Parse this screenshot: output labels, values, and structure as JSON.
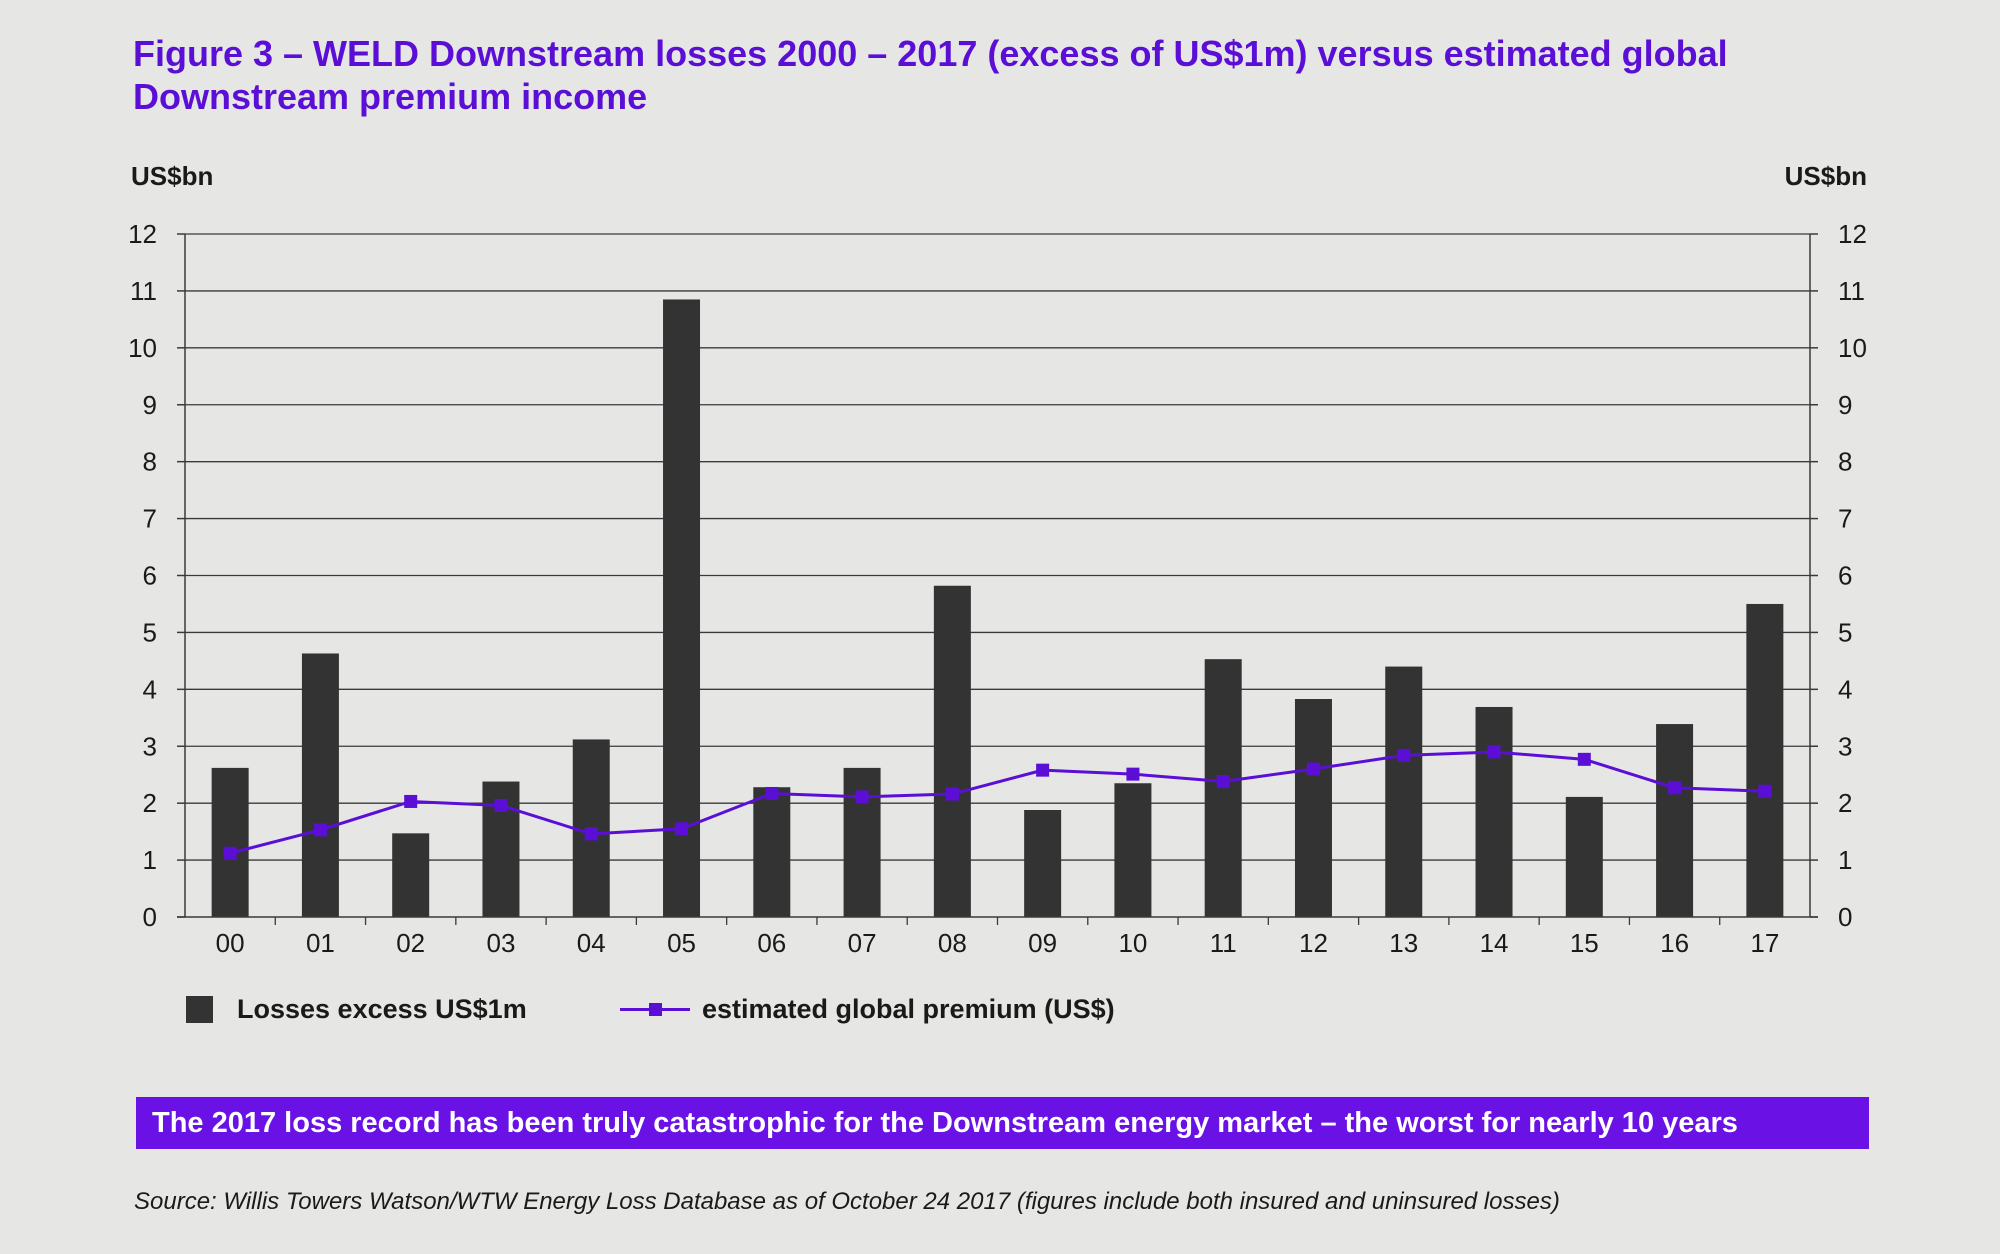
{
  "title": "Figure 3 – WELD Downstream losses 2000 – 2017 (excess of US$1m) versus estimated global Downstream premium income",
  "axis_unit_left": "US$bn",
  "axis_unit_right": "US$bn",
  "legend": {
    "bars_label": "Losses excess US$1m",
    "line_label": "estimated global premium (US$)"
  },
  "banner": "The 2017 loss record has been truly catastrophic for the Downstream energy market – the worst for nearly 10 years",
  "source": "Source: Willis Towers Watson/WTW Energy Loss Database as of October 24 2017 (figures include both insured and uninsured losses)",
  "colors": {
    "bars": "#333333",
    "line": "#5b0fd6",
    "banner": "#6a11e6",
    "title": "#5b0fd6"
  },
  "chart_data": {
    "type": "bar",
    "categories": [
      "00",
      "01",
      "02",
      "03",
      "04",
      "05",
      "06",
      "07",
      "08",
      "09",
      "10",
      "11",
      "12",
      "13",
      "14",
      "15",
      "16",
      "17"
    ],
    "ylim": [
      0,
      12
    ],
    "y_ticks": [
      0,
      1,
      2,
      3,
      4,
      5,
      6,
      7,
      8,
      9,
      10,
      11,
      12
    ],
    "grid": true,
    "legend_position": "bottom-left",
    "series": [
      {
        "name": "Losses excess US$1m",
        "type": "bar",
        "values": [
          2.62,
          4.63,
          1.47,
          2.38,
          3.12,
          10.85,
          2.28,
          2.62,
          5.82,
          1.88,
          2.35,
          4.53,
          3.83,
          4.4,
          3.69,
          2.11,
          3.39,
          5.5
        ]
      },
      {
        "name": "estimated global premium (US$)",
        "type": "line",
        "values": [
          1.12,
          1.53,
          2.03,
          1.96,
          1.46,
          1.55,
          2.17,
          2.11,
          2.16,
          2.58,
          2.51,
          2.38,
          2.6,
          2.84,
          2.9,
          2.77,
          2.27,
          2.21
        ]
      }
    ]
  }
}
